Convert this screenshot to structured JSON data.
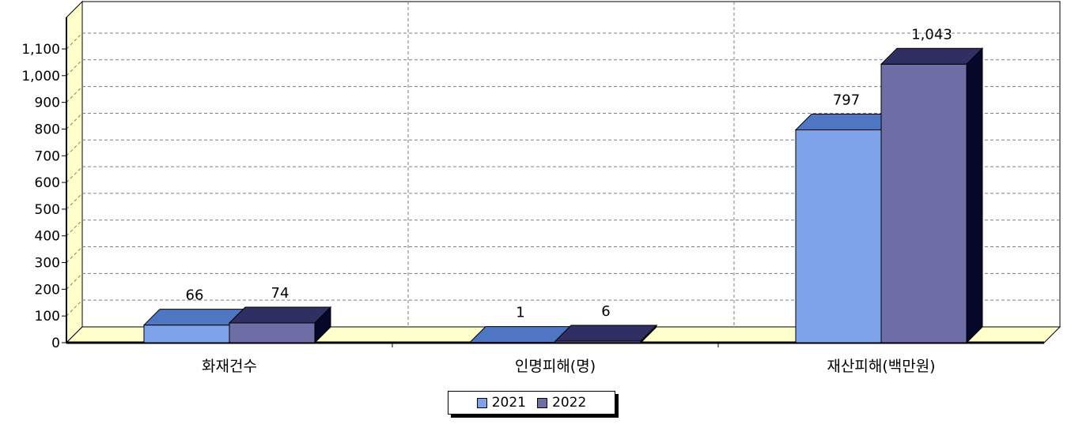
{
  "chart_data": {
    "type": "bar",
    "categories": [
      "화재건수",
      "인명피해(명)",
      "재산피해(백만원)"
    ],
    "series": [
      {
        "name": "2021",
        "values": [
          66,
          1,
          797
        ],
        "labels": [
          "66",
          "1",
          "797"
        ],
        "color": "#7fa3ea"
      },
      {
        "name": "2022",
        "values": [
          74,
          6,
          1043
        ],
        "labels": [
          "74",
          "6",
          "1,043"
        ],
        "color": "#6e6ea6"
      }
    ],
    "y_ticks": [
      "0",
      "100",
      "200",
      "300",
      "400",
      "500",
      "600",
      "700",
      "800",
      "900",
      "1,000",
      "1,100"
    ],
    "ylim": [
      0,
      1100
    ],
    "grid": true,
    "legend_position": "bottom",
    "colors": {
      "floor": "#ffffcc",
      "wall": "#ffffff",
      "gridline": "#7f7f7f",
      "series_2021_top": "#4f76c2",
      "series_2021_side": "#1b2e6e",
      "series_2022_top": "#2f2f63",
      "series_2022_side": "#07072a"
    }
  }
}
